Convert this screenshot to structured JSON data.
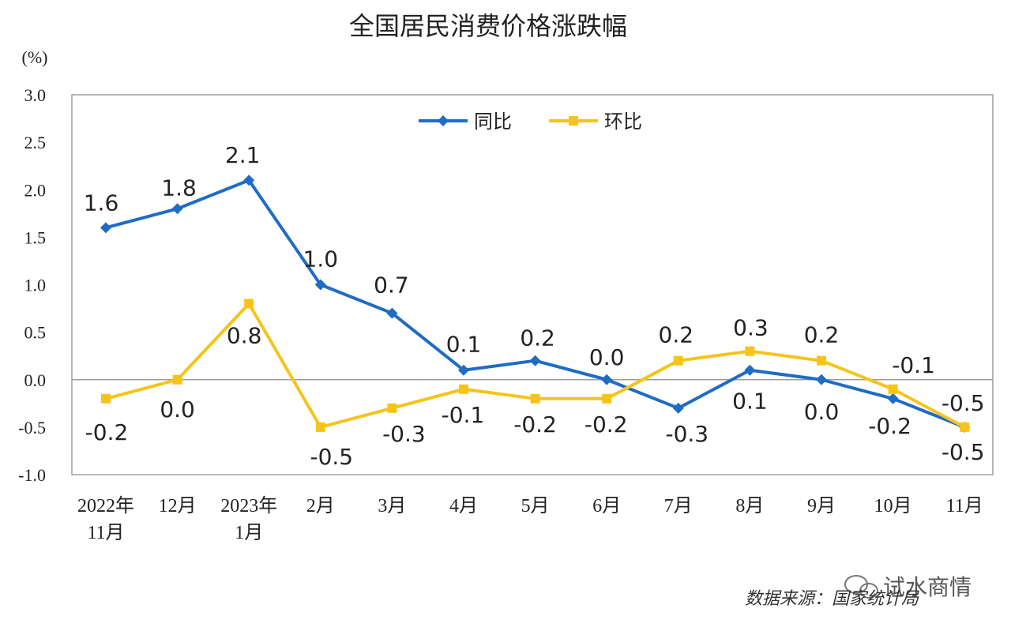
{
  "chart_data": {
    "type": "line",
    "title": "全国居民消费价格涨跌幅",
    "ylabel": "(%)",
    "ylim": [
      -1.0,
      3.0
    ],
    "yticks": [
      "3.0",
      "2.5",
      "2.0",
      "1.5",
      "1.0",
      "0.5",
      "0.0",
      "-0.5",
      "-1.0"
    ],
    "categories": [
      [
        "2022年",
        "11月"
      ],
      [
        "12月"
      ],
      [
        "2023年",
        "1月"
      ],
      [
        "2月"
      ],
      [
        "3月"
      ],
      [
        "4月"
      ],
      [
        "5月"
      ],
      [
        "6月"
      ],
      [
        "7月"
      ],
      [
        "8月"
      ],
      [
        "9月"
      ],
      [
        "10月"
      ],
      [
        "11月"
      ]
    ],
    "series": [
      {
        "name": "同比",
        "color": "#1f6cc4",
        "marker": "diamond",
        "values": [
          1.6,
          1.8,
          2.1,
          1.0,
          0.7,
          0.1,
          0.2,
          0.0,
          -0.3,
          0.1,
          0.0,
          -0.2,
          -0.5
        ],
        "labels": [
          "1.6",
          "1.8",
          "2.1",
          "1.0",
          "0.7",
          "0.1",
          "0.2",
          "0.0",
          "-0.3",
          "0.1",
          "0.0",
          "-0.2",
          "-0.5"
        ]
      },
      {
        "name": "环比",
        "color": "#f6c419",
        "marker": "square",
        "values": [
          -0.2,
          0.0,
          0.8,
          -0.5,
          -0.3,
          -0.1,
          -0.2,
          -0.2,
          0.2,
          0.3,
          0.2,
          -0.1,
          -0.5
        ],
        "labels": [
          "-0.2",
          "0.0",
          "0.8",
          "-0.5",
          "-0.3",
          "-0.1",
          "-0.2",
          "-0.2",
          "0.2",
          "0.3",
          "0.2",
          "-0.1",
          "-0.5"
        ]
      }
    ],
    "legend": "top-center",
    "grid": false
  },
  "source_note": "数据来源：国家统计局",
  "watermark": "试水商情"
}
